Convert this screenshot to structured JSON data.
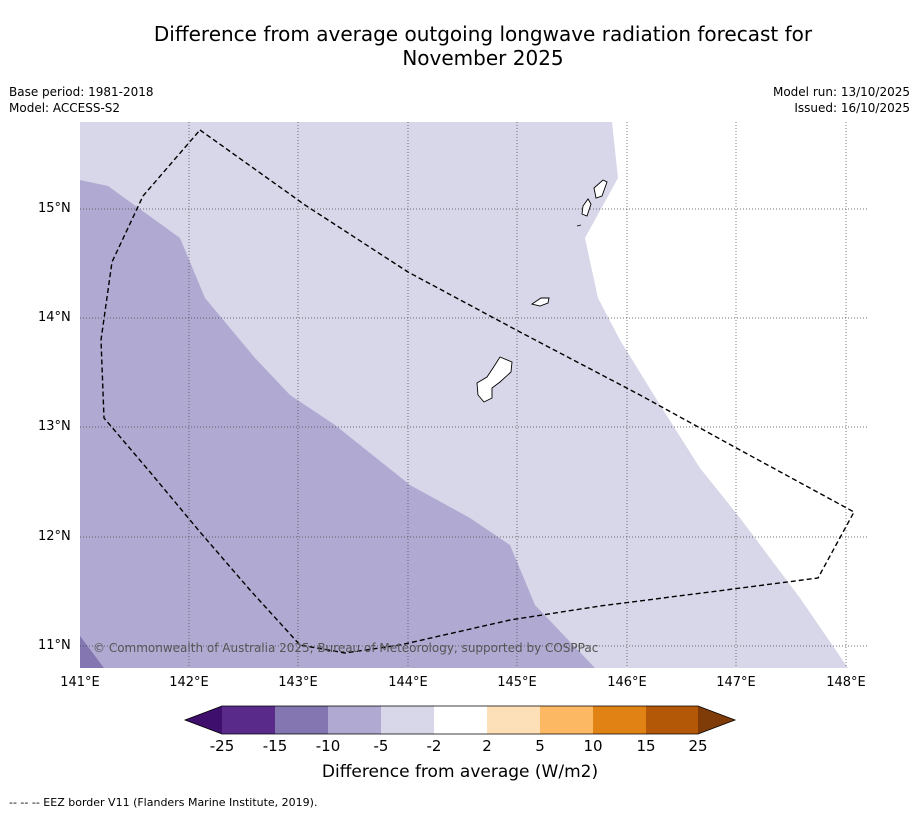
{
  "title": {
    "line1": "Difference from average outgoing longwave radiation forecast for",
    "line2": "November 2025"
  },
  "meta": {
    "base_period": "Base period: 1981-2018",
    "model": "Model: ACCESS-S2",
    "model_run": "Model run: 13/10/2025",
    "issued": "Issued: 16/10/2025"
  },
  "map": {
    "lat_labels": [
      "15°N",
      "14°N",
      "13°N",
      "12°N",
      "11°N"
    ],
    "lon_labels": [
      "141°E",
      "142°E",
      "143°E",
      "144°E",
      "145°E",
      "146°E",
      "147°E",
      "148°E"
    ],
    "copyright": "© Commonwealth of Australia 2025, Bureau of Meteorology, supported by COSPPac",
    "colors": {
      "c_m10_m5": "#b0aad2",
      "c_m5_m2": "#d7d7e9",
      "c_m15_m10": "#8477b1",
      "neutral": "#ffffff"
    }
  },
  "colorbar": {
    "ticks": [
      "-25",
      "-15",
      "-10",
      "-5",
      "-2",
      "2",
      "5",
      "10",
      "15",
      "25"
    ],
    "colors": [
      "#3f0f6e",
      "#5a2a8a",
      "#8477b1",
      "#b0aad2",
      "#d7d7e9",
      "#ffffff",
      "#fde0b8",
      "#fdb863",
      "#e08214",
      "#b35806",
      "#7f3b08"
    ],
    "title": "Difference from average (W/m2)"
  },
  "footnote": "--  --  -- EEZ border V11 (Flanders Marine Institute, 2019)."
}
